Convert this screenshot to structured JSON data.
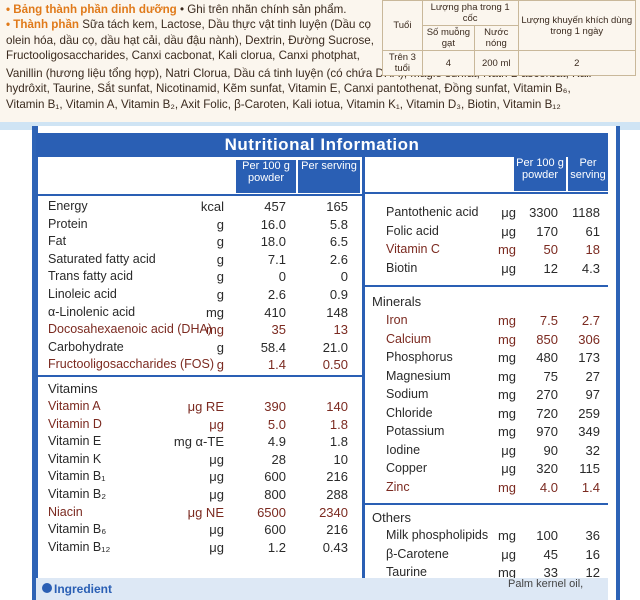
{
  "top_label": {
    "intro_heading": "• Bảng thành phần dinh dưỡng",
    "intro_text": " • Ghi trên nhãn chính sản phẩm.",
    "ingredients_heading": "• Thành phần",
    "ingredients_line1": " Sữa tách kem, Lactose, Dầu thực vật tinh luyện (Dầu cọ",
    "ingredients_line2": "olein hóa, dầu cọ, dầu hạt cải, dầu đậu nành), Dextrin, Đường Sucrose,",
    "ingredients_line3": "Fructooligosaccharides, Canxi cacbonat, Kali clorua, Canxi photphat,",
    "ingredients_line4": "Vanillin (hương liệu tổng hợp), Natri Clorua, Dầu cá tinh luyện (có chứa DHA), Magiê sunfat, Natri L-ascorbat, Kali",
    "ingredients_line5": "hydrôxit, Taurine, Sắt sunfat, Nicotinamid, Kẽm sunfat, Vitamin E, Canxi pantothenat, Đồng sunfat, Vitamin B₆,",
    "ingredients_line6": "Vitamin B₁, Vitamin A, Vitamin B₂, Axit Folic, β-Caroten, Kali iotua, Vitamin K₁, Vitamin D₃, Biotin, Vitamin B₁₂",
    "mix_table": {
      "col_age": "Tuổi",
      "col_per_cup": "Lượng pha trong 1 cốc",
      "col_scoops": "Số muỗng gạt",
      "col_water": "Nước nóng",
      "col_recommend": "Lượng khuyến khích dùng trong 1 ngày",
      "row_age": "Trên 3 tuổi",
      "row_scoops": "4",
      "row_water": "200 ml",
      "row_recommend": "2"
    }
  },
  "panel": {
    "title": "Nutritional Information",
    "hdr_per100": "Per 100 g powder",
    "hdr_serving": "Per serving",
    "right_hdr_per100": "Per 100 g powder",
    "right_hdr_serving": "Per serving"
  },
  "left_rows": [
    {
      "label": "Energy",
      "unit": "kcal",
      "p100": "457",
      "ps": "165",
      "red": false
    },
    {
      "label": "Protein",
      "unit": "g",
      "p100": "16.0",
      "ps": "5.8",
      "red": false
    },
    {
      "label": "Fat",
      "unit": "g",
      "p100": "18.0",
      "ps": "6.5",
      "red": false
    },
    {
      "label": "Saturated fatty acid",
      "unit": "g",
      "p100": "7.1",
      "ps": "2.6",
      "red": false
    },
    {
      "label": "Trans fatty acid",
      "unit": "g",
      "p100": "0",
      "ps": "0",
      "red": false
    },
    {
      "label": "Linoleic acid",
      "unit": "g",
      "p100": "2.6",
      "ps": "0.9",
      "red": false
    },
    {
      "label": "α-Linolenic acid",
      "unit": "mg",
      "p100": "410",
      "ps": "148",
      "red": false
    },
    {
      "label": "Docosahexaenoic acid (DHA)",
      "unit": "mg",
      "p100": "35",
      "ps": "13",
      "red": true
    },
    {
      "label": "Carbohydrate",
      "unit": "g",
      "p100": "58.4",
      "ps": "21.0",
      "red": false
    },
    {
      "label": "Fructooligosaccharides (FOS)",
      "unit": "g",
      "p100": "1.4",
      "ps": "0.50",
      "red": true
    }
  ],
  "vitamins_heading": "Vitamins",
  "vitamin_rows": [
    {
      "label": "Vitamin A",
      "unit": "μg RE",
      "p100": "390",
      "ps": "140",
      "red": true
    },
    {
      "label": "Vitamin D",
      "unit": "μg",
      "p100": "5.0",
      "ps": "1.8",
      "red": true
    },
    {
      "label": "Vitamin E",
      "unit": "mg α-TE",
      "p100": "4.9",
      "ps": "1.8",
      "red": false
    },
    {
      "label": "Vitamin K",
      "unit": "μg",
      "p100": "28",
      "ps": "10",
      "red": false
    },
    {
      "label": "Vitamin B₁",
      "unit": "μg",
      "p100": "600",
      "ps": "216",
      "red": false
    },
    {
      "label": "Vitamin B₂",
      "unit": "μg",
      "p100": "800",
      "ps": "288",
      "red": false
    },
    {
      "label": "Niacin",
      "unit": "μg NE",
      "p100": "6500",
      "ps": "2340",
      "red": true
    },
    {
      "label": "Vitamin B₆",
      "unit": "μg",
      "p100": "600",
      "ps": "216",
      "red": false
    },
    {
      "label": "Vitamin B₁₂",
      "unit": "μg",
      "p100": "1.2",
      "ps": "0.43",
      "red": false
    }
  ],
  "right_top_rows": [
    {
      "label": "Pantothenic acid",
      "unit": "μg",
      "p100": "3300",
      "ps": "1188",
      "red": false
    },
    {
      "label": "Folic acid",
      "unit": "μg",
      "p100": "170",
      "ps": "61",
      "red": false
    },
    {
      "label": "Vitamin C",
      "unit": "mg",
      "p100": "50",
      "ps": "18",
      "red": true
    },
    {
      "label": "Biotin",
      "unit": "μg",
      "p100": "12",
      "ps": "4.3",
      "red": false
    }
  ],
  "minerals_heading": "Minerals",
  "mineral_rows": [
    {
      "label": "Iron",
      "unit": "mg",
      "p100": "7.5",
      "ps": "2.7",
      "red": true
    },
    {
      "label": "Calcium",
      "unit": "mg",
      "p100": "850",
      "ps": "306",
      "red": true
    },
    {
      "label": "Phosphorus",
      "unit": "mg",
      "p100": "480",
      "ps": "173",
      "red": false
    },
    {
      "label": "Magnesium",
      "unit": "mg",
      "p100": "75",
      "ps": "27",
      "red": false
    },
    {
      "label": "Sodium",
      "unit": "mg",
      "p100": "270",
      "ps": "97",
      "red": false
    },
    {
      "label": "Chloride",
      "unit": "mg",
      "p100": "720",
      "ps": "259",
      "red": false
    },
    {
      "label": "Potassium",
      "unit": "mg",
      "p100": "970",
      "ps": "349",
      "red": false
    },
    {
      "label": "Iodine",
      "unit": "μg",
      "p100": "90",
      "ps": "32",
      "red": false
    },
    {
      "label": "Copper",
      "unit": "μg",
      "p100": "320",
      "ps": "115",
      "red": false
    },
    {
      "label": "Zinc",
      "unit": "mg",
      "p100": "4.0",
      "ps": "1.4",
      "red": true
    }
  ],
  "others_heading": "Others",
  "other_rows": [
    {
      "label": "Milk phospholipids",
      "unit": "mg",
      "p100": "100",
      "ps": "36",
      "red": false
    },
    {
      "label": "β-Carotene",
      "unit": "μg",
      "p100": "45",
      "ps": "16",
      "red": false
    },
    {
      "label": "Taurine",
      "unit": "mg",
      "p100": "33",
      "ps": "12",
      "red": false
    }
  ],
  "footer": {
    "ingredients_label": "Ingredient",
    "ingredients_tail": "Palm kernel oil,"
  },
  "colors": {
    "accent_blue": "#2a5fb4",
    "text_dark": "#2a2a2a",
    "text_red": "#7b2a20",
    "label_orange": "#e07a1a"
  }
}
